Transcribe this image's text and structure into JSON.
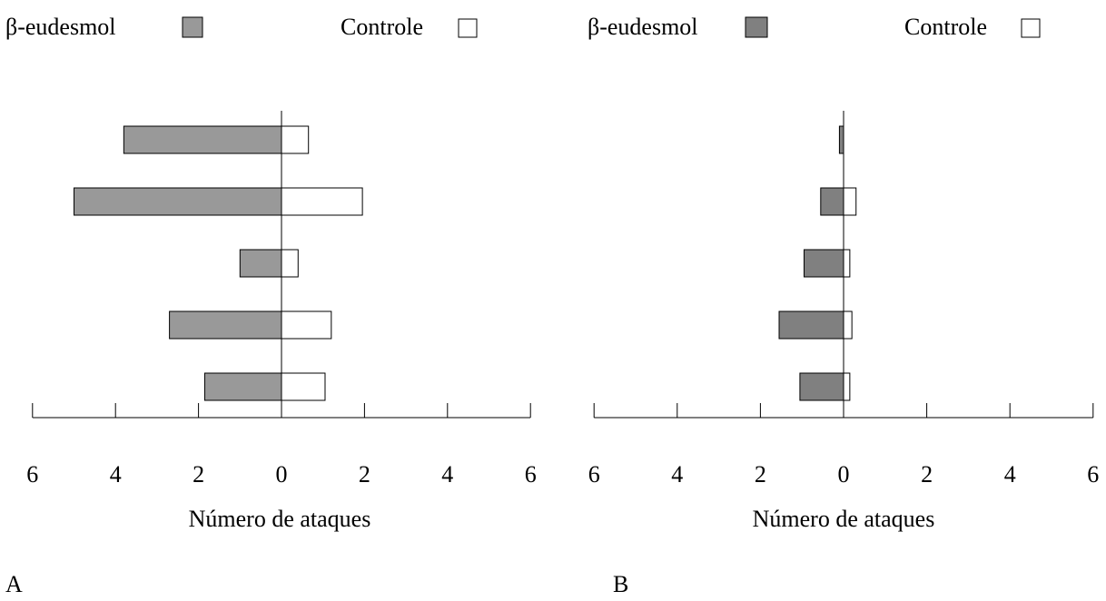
{
  "chart_data": [
    {
      "type": "bar",
      "orientation": "horizontal-diverging",
      "panel_label": "A",
      "xlabel": "Número de ataques",
      "xlim": [
        -6,
        6
      ],
      "ticks": [
        -6,
        -4,
        -2,
        0,
        2,
        4,
        6
      ],
      "tick_labels": [
        "6",
        "4",
        "2",
        "0",
        "2",
        "4",
        "6"
      ],
      "legend": {
        "left": "β-eudesmol",
        "right": "Controle",
        "placement": "top"
      },
      "colors": {
        "treatment": "#999999",
        "control": "#ffffff"
      },
      "series": [
        {
          "name": "β-eudesmol",
          "side": "left",
          "values": [
            3.8,
            5.0,
            1.0,
            2.7,
            1.85
          ]
        },
        {
          "name": "Controle",
          "side": "right",
          "values": [
            0.65,
            1.95,
            0.4,
            1.2,
            1.05
          ]
        }
      ]
    },
    {
      "type": "bar",
      "orientation": "horizontal-diverging",
      "panel_label": "B",
      "xlabel": "Número de ataques",
      "xlim": [
        -6,
        6
      ],
      "ticks": [
        -6,
        -4,
        -2,
        0,
        2,
        4,
        6
      ],
      "tick_labels": [
        "6",
        "4",
        "2",
        "0",
        "2",
        "4",
        "6"
      ],
      "legend": {
        "left": "β-eudesmol",
        "right": "Controle",
        "placement": "top"
      },
      "colors": {
        "treatment": "#808080",
        "control": "#ffffff"
      },
      "series": [
        {
          "name": "β-eudesmol",
          "side": "left",
          "values": [
            0.1,
            0.55,
            0.95,
            1.55,
            1.05
          ]
        },
        {
          "name": "Controle",
          "side": "right",
          "values": [
            0,
            0.3,
            0.15,
            0.2,
            0.15
          ]
        }
      ]
    }
  ]
}
